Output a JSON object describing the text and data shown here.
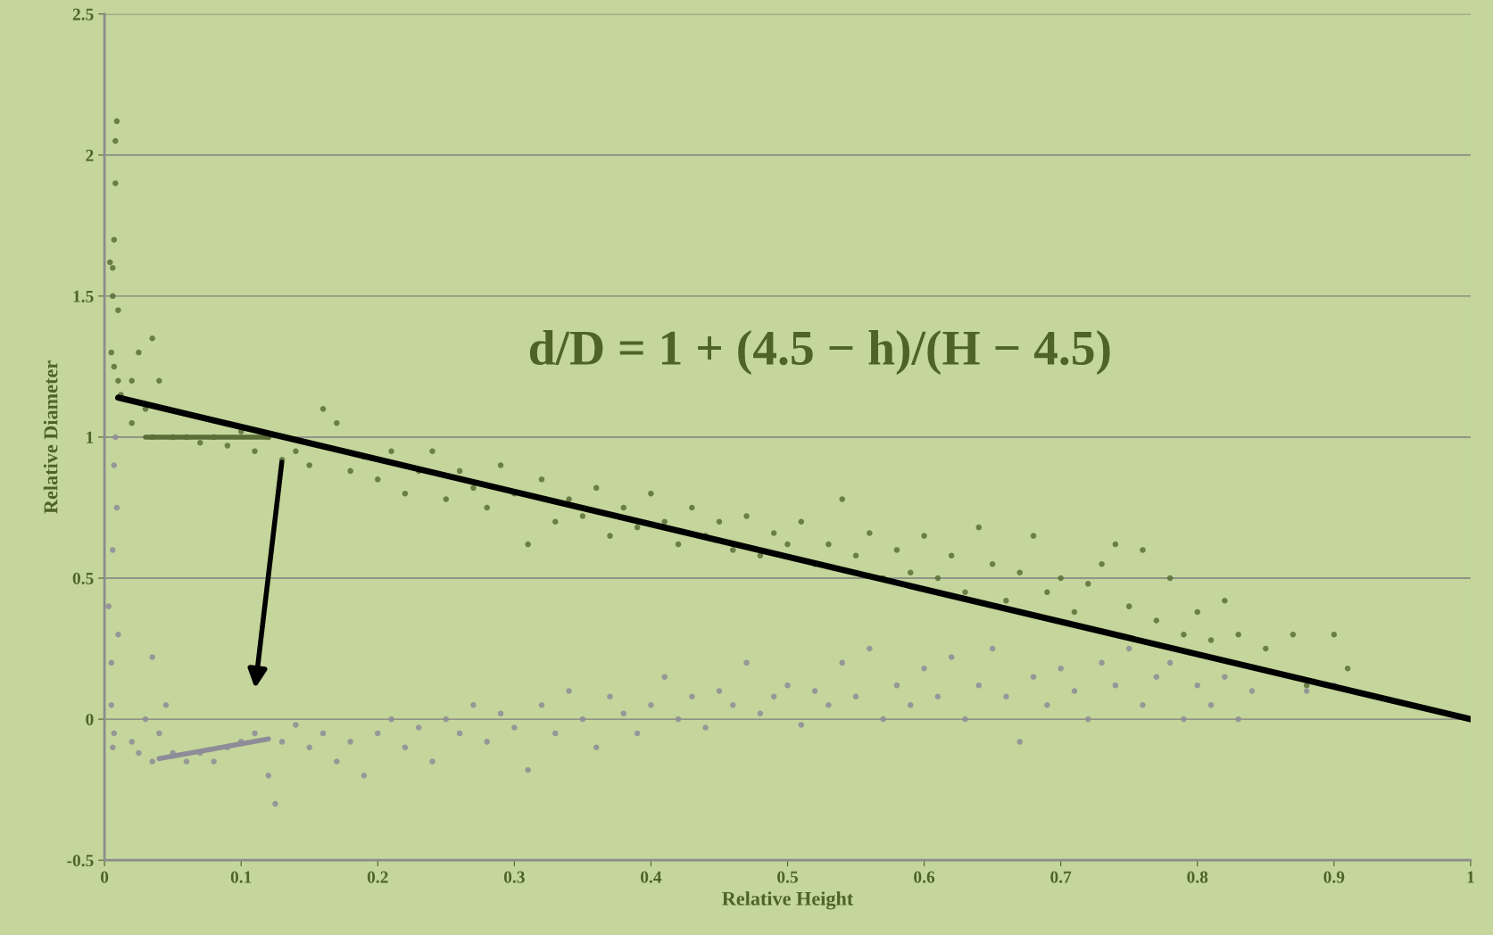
{
  "chart_data": {
    "type": "scatter",
    "xlabel": "Relative Height",
    "ylabel": "Relative Diameter",
    "xlim": [
      0,
      1
    ],
    "xticks": [
      0,
      0.1,
      0.2,
      0.3,
      0.4,
      0.5,
      0.6,
      0.7,
      0.8,
      0.9,
      1
    ],
    "ylim": [
      -0.5,
      2.5
    ],
    "yticks": [
      -0.5,
      0,
      0.5,
      1,
      1.5,
      2,
      2.5
    ],
    "grid": "y",
    "legend": false,
    "marker": "circle",
    "annotations": [
      "d/D = 1 + (4.5 − h)/(H − 4.5)"
    ],
    "series": [
      {
        "color": "#5b6e38",
        "x": [
          0.005,
          0.006,
          0.007,
          0.008,
          0.008,
          0.009,
          0.006,
          0.007,
          0.01,
          0.01,
          0.012,
          0.004,
          0.02,
          0.02,
          0.025,
          0.03,
          0.035,
          0.035,
          0.04,
          0.045,
          0.05,
          0.06,
          0.07,
          0.08,
          0.09,
          0.1,
          0.11,
          0.12,
          0.13,
          0.14,
          0.15,
          0.16,
          0.17,
          0.18,
          0.19,
          0.2,
          0.21,
          0.22,
          0.23,
          0.24,
          0.25,
          0.26,
          0.27,
          0.28,
          0.29,
          0.3,
          0.31,
          0.32,
          0.33,
          0.34,
          0.35,
          0.36,
          0.37,
          0.38,
          0.39,
          0.4,
          0.41,
          0.42,
          0.43,
          0.44,
          0.45,
          0.46,
          0.47,
          0.48,
          0.49,
          0.5,
          0.51,
          0.52,
          0.53,
          0.54,
          0.55,
          0.56,
          0.57,
          0.58,
          0.59,
          0.6,
          0.61,
          0.62,
          0.63,
          0.64,
          0.65,
          0.66,
          0.67,
          0.68,
          0.69,
          0.7,
          0.71,
          0.72,
          0.73,
          0.74,
          0.75,
          0.76,
          0.77,
          0.78,
          0.79,
          0.8,
          0.81,
          0.82,
          0.83,
          0.85,
          0.87,
          0.88,
          0.9,
          0.91
        ],
        "values": [
          1.3,
          1.5,
          1.7,
          1.9,
          2.05,
          2.12,
          1.6,
          1.25,
          1.45,
          1.2,
          1.15,
          1.62,
          1.05,
          1.2,
          1.3,
          1.1,
          1.35,
          1.0,
          1.2,
          1.1,
          1.0,
          1.0,
          0.98,
          1.0,
          0.97,
          1.02,
          0.95,
          1.0,
          0.92,
          0.95,
          0.9,
          1.1,
          1.05,
          0.88,
          0.93,
          0.85,
          0.95,
          0.8,
          0.88,
          0.95,
          0.78,
          0.88,
          0.82,
          0.75,
          0.9,
          0.8,
          0.62,
          0.85,
          0.7,
          0.78,
          0.72,
          0.82,
          0.65,
          0.75,
          0.68,
          0.8,
          0.7,
          0.62,
          0.75,
          0.65,
          0.7,
          0.6,
          0.72,
          0.58,
          0.66,
          0.62,
          0.7,
          0.55,
          0.62,
          0.78,
          0.58,
          0.66,
          0.5,
          0.6,
          0.52,
          0.65,
          0.5,
          0.58,
          0.45,
          0.68,
          0.55,
          0.42,
          0.52,
          0.65,
          0.45,
          0.5,
          0.38,
          0.48,
          0.55,
          0.62,
          0.4,
          0.6,
          0.35,
          0.5,
          0.3,
          0.38,
          0.28,
          0.42,
          0.3,
          0.25,
          0.3,
          0.12,
          0.3,
          0.18
        ]
      },
      {
        "color": "#8e8c98",
        "x": [
          0.003,
          0.005,
          0.006,
          0.007,
          0.008,
          0.009,
          0.007,
          0.006,
          0.005,
          0.01,
          0.02,
          0.025,
          0.03,
          0.035,
          0.035,
          0.04,
          0.045,
          0.05,
          0.06,
          0.07,
          0.08,
          0.09,
          0.1,
          0.11,
          0.12,
          0.125,
          0.13,
          0.14,
          0.15,
          0.16,
          0.17,
          0.18,
          0.19,
          0.2,
          0.21,
          0.22,
          0.23,
          0.24,
          0.25,
          0.26,
          0.27,
          0.28,
          0.29,
          0.3,
          0.31,
          0.32,
          0.33,
          0.34,
          0.35,
          0.36,
          0.37,
          0.38,
          0.39,
          0.4,
          0.41,
          0.42,
          0.43,
          0.44,
          0.45,
          0.46,
          0.47,
          0.48,
          0.49,
          0.5,
          0.51,
          0.52,
          0.53,
          0.54,
          0.55,
          0.56,
          0.57,
          0.58,
          0.59,
          0.6,
          0.61,
          0.62,
          0.63,
          0.64,
          0.65,
          0.66,
          0.67,
          0.68,
          0.69,
          0.7,
          0.71,
          0.72,
          0.73,
          0.74,
          0.75,
          0.76,
          0.77,
          0.78,
          0.79,
          0.8,
          0.81,
          0.82,
          0.83,
          0.84,
          0.88,
          0.9
        ],
        "values": [
          0.4,
          0.2,
          0.6,
          0.9,
          1.0,
          0.75,
          -0.05,
          -0.1,
          0.05,
          0.3,
          -0.08,
          -0.12,
          0.0,
          -0.15,
          0.22,
          -0.05,
          0.05,
          -0.12,
          -0.15,
          -0.12,
          -0.15,
          -0.1,
          -0.08,
          -0.05,
          -0.2,
          -0.3,
          -0.08,
          -0.02,
          -0.1,
          -0.05,
          -0.15,
          -0.08,
          -0.2,
          -0.05,
          0.0,
          -0.1,
          -0.03,
          -0.15,
          0.0,
          -0.05,
          0.05,
          -0.08,
          0.02,
          -0.03,
          -0.18,
          0.05,
          -0.05,
          0.1,
          0.0,
          -0.1,
          0.08,
          0.02,
          -0.05,
          0.05,
          0.15,
          0.0,
          0.08,
          -0.03,
          0.1,
          0.05,
          0.2,
          0.02,
          0.08,
          0.12,
          -0.02,
          0.1,
          0.05,
          0.2,
          0.08,
          0.25,
          0.0,
          0.12,
          0.05,
          0.18,
          0.08,
          0.22,
          0.0,
          0.12,
          0.25,
          0.08,
          -0.08,
          0.15,
          0.05,
          0.18,
          0.1,
          0.0,
          0.2,
          0.12,
          0.25,
          0.05,
          0.15,
          0.2,
          0.0,
          0.12,
          0.05,
          0.15,
          0.0,
          0.1,
          0.1,
          0.12
        ]
      },
      {
        "type": "line",
        "color": "#5b6e38",
        "marker": "none",
        "x": [
          0.03,
          0.12
        ],
        "values": [
          1.0,
          1.0
        ]
      },
      {
        "type": "line",
        "color": "#8e8c98",
        "marker": "none",
        "x": [
          0.04,
          0.12
        ],
        "values": [
          -0.14,
          -0.07
        ]
      },
      {
        "type": "line",
        "color": "#000000",
        "marker": "none",
        "x": [
          0.01,
          1.0
        ],
        "values": [
          1.14,
          0.0
        ]
      }
    ]
  }
}
